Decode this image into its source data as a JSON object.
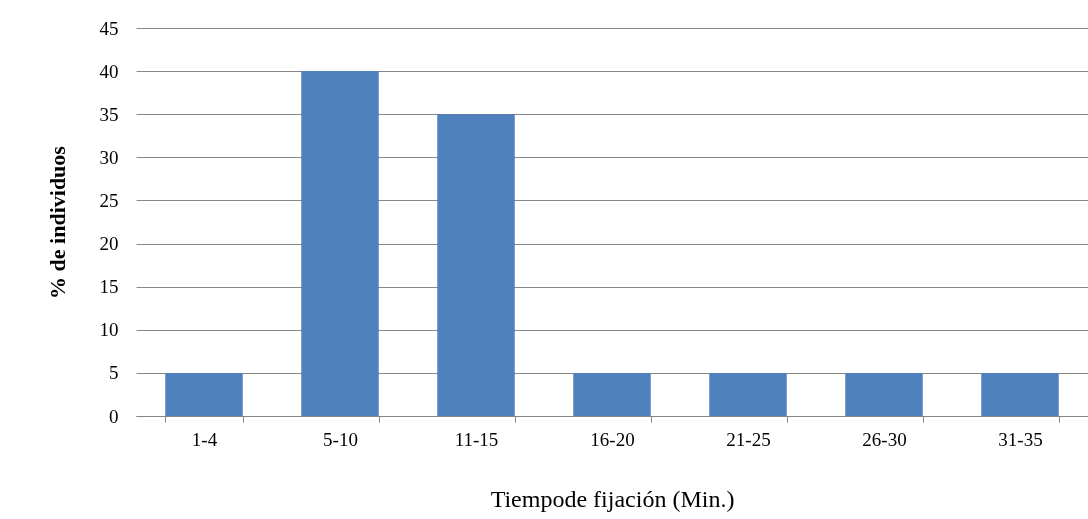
{
  "chart_data": {
    "type": "bar",
    "xlabel": "Tiempode fijación (Min.)",
    "ylabel": "% de individuos",
    "categories": [
      "1-4",
      "5-10",
      "11-15",
      "16-20",
      "21-25",
      "26-30",
      "31-35"
    ],
    "values": [
      5,
      40,
      35,
      5,
      5,
      5,
      5
    ],
    "color": "#4f81bd",
    "ylim": [
      0,
      45
    ],
    "yticks": [
      0,
      5,
      10,
      15,
      20,
      25,
      30,
      35,
      40,
      45
    ],
    "grid": "y"
  }
}
